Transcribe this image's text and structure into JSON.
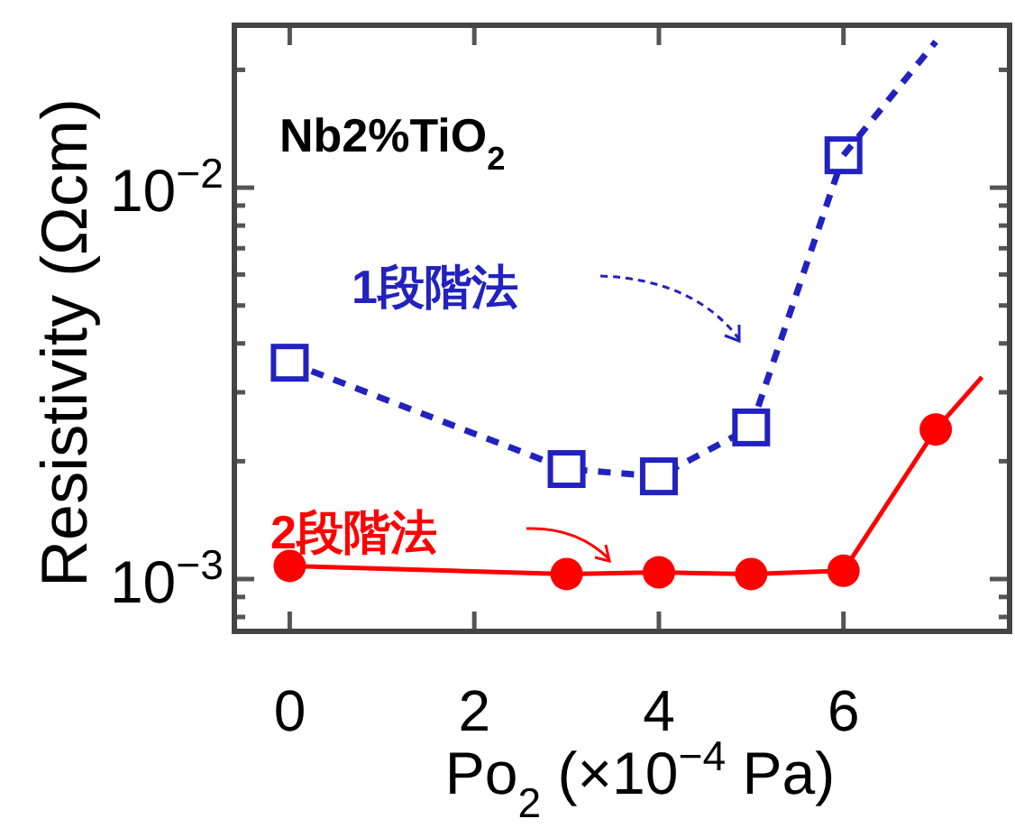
{
  "chart_data": {
    "type": "line",
    "title": "Nb2%TiO$_{2}$",
    "xlabel": "Po$_{2}$ (×10$^{−4}$ Pa)",
    "ylabel": "Resistivity (Ωcm)",
    "log": "y",
    "xlim": [
      -0.6,
      7.8
    ],
    "xticks": [
      0,
      2,
      4,
      6
    ],
    "ylim": [
      0.000735,
      0.026
    ],
    "yticks": [
      {
        "value": 0.0008,
        "label": null
      },
      {
        "value": 0.0009,
        "label": null
      },
      {
        "value": 0.001,
        "label": "10$^{−3}$"
      },
      {
        "value": 0.002,
        "label": null
      },
      {
        "value": 0.003,
        "label": null
      },
      {
        "value": 0.004,
        "label": null
      },
      {
        "value": 0.005,
        "label": null
      },
      {
        "value": 0.006,
        "label": null
      },
      {
        "value": 0.007,
        "label": null
      },
      {
        "value": 0.008,
        "label": null
      },
      {
        "value": 0.009,
        "label": null
      },
      {
        "value": 0.01,
        "label": "10$^{−2}$"
      },
      {
        "value": 0.02,
        "label": null
      }
    ],
    "grid": false,
    "legend": "left",
    "series": [
      {
        "name": "1段階法",
        "color": "#2222c0",
        "x": [
          0,
          3,
          4,
          5,
          6
        ],
        "values": [
          0.00357,
          0.00191,
          0.00183,
          0.00244,
          0.0121
        ],
        "marker": "square",
        "line_style": "dashed"
      },
      {
        "name": "2段階法",
        "color": "#ff0000",
        "x": [
          0,
          3,
          4,
          5,
          6,
          7
        ],
        "values": [
          0.00108,
          0.00103,
          0.00104,
          0.00103,
          0.00105,
          0.00241
        ],
        "marker": "circle",
        "line_style": "solid"
      },
      {
        "color": "#2222c0",
        "x": [
          6,
          7
        ],
        "values": [
          0.0121,
          0.0236
        ],
        "marker": "none",
        "line_style": "dashed"
      },
      {
        "color": "#ff0000",
        "x": [
          7,
          7.5
        ],
        "values": [
          0.00241,
          0.00328
        ],
        "marker": "none",
        "line_style": "solid"
      }
    ]
  }
}
